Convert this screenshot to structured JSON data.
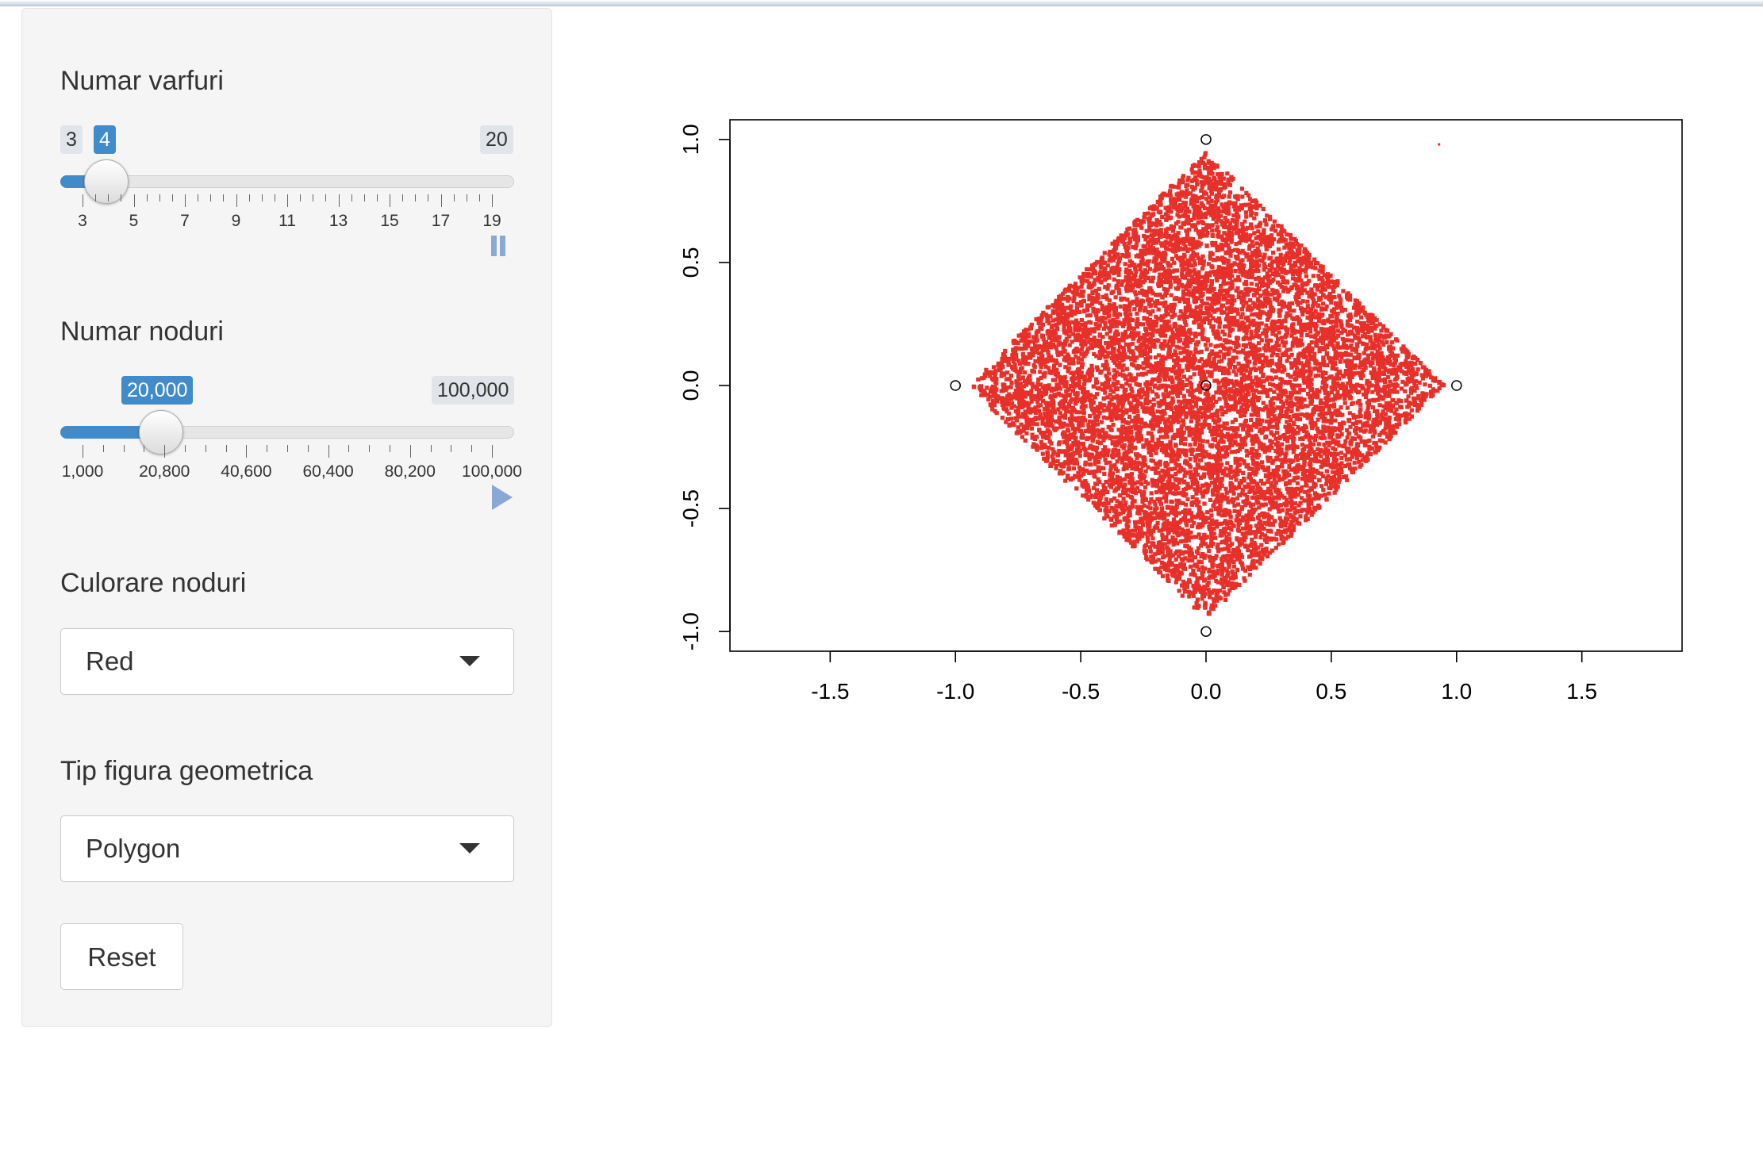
{
  "sidebar": {
    "vertices": {
      "label": "Numar varfuri",
      "min": 3,
      "max": 20,
      "value": 4,
      "min_label": "3",
      "max_label": "20",
      "value_label": "4",
      "tick_labels": [
        "3",
        "5",
        "7",
        "9",
        "11",
        "13",
        "15",
        "17",
        "19"
      ],
      "play_state": "pause-icon"
    },
    "nodes": {
      "label": "Numar noduri",
      "min": 1000,
      "max": 100000,
      "value": 20000,
      "min_label": "",
      "max_label": "100,000",
      "value_label": "20,000",
      "tick_labels": [
        "1,000",
        "20,800",
        "40,600",
        "60,400",
        "80,200",
        "100,000"
      ],
      "play_state": "play-icon"
    },
    "color": {
      "label": "Culorare noduri",
      "selected": "Red"
    },
    "shape": {
      "label": "Tip figura geometrica",
      "selected": "Polygon"
    },
    "reset_label": "Reset"
  },
  "colors": {
    "accent": "#428bca",
    "points": "#e8302a"
  },
  "chart_data": {
    "type": "scatter",
    "title": "",
    "xlabel": "",
    "ylabel": "",
    "xlim": [
      -1.9,
      1.9
    ],
    "ylim": [
      -1.08,
      1.08
    ],
    "x_ticks": [
      "-1.5",
      "-1.0",
      "-0.5",
      "0.0",
      "0.5",
      "1.0",
      "1.5"
    ],
    "y_ticks": [
      "-1.0",
      "-0.5",
      "0.0",
      "0.5",
      "1.0"
    ],
    "vertices": [
      [
        0,
        1
      ],
      [
        1,
        0
      ],
      [
        0,
        -1
      ],
      [
        -1,
        0
      ]
    ],
    "center": [
      0,
      0
    ],
    "stray_point": [
      0.93,
      0.98
    ],
    "fractal_ratio": 0.5,
    "num_points": 20000
  }
}
